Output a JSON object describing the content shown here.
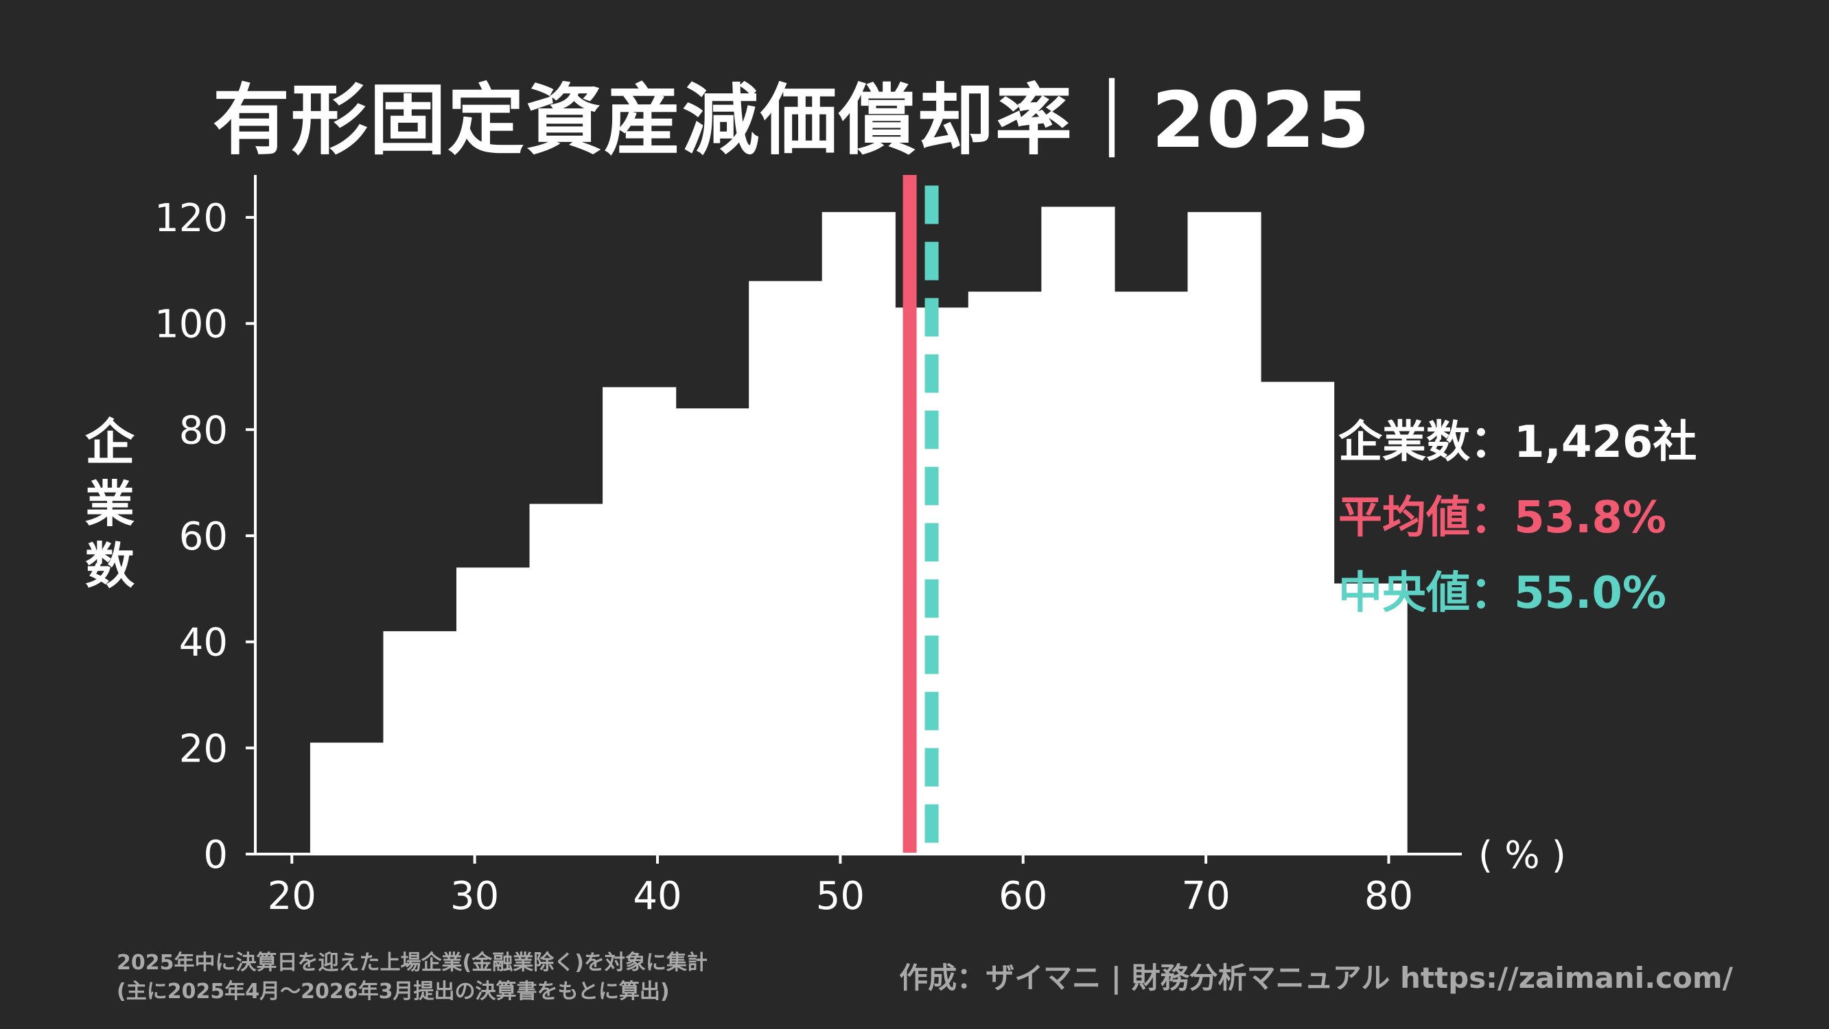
{
  "title": "有形固定資産減価償却率｜2025",
  "colors": {
    "background": "#282828",
    "bars": "#ffffff",
    "mean": "#f25a71",
    "median": "#5dd3c6",
    "note": "#a9a9a9"
  },
  "stats": {
    "count_label": "企業数",
    "count_value": "：1,426社",
    "mean_label": "平均値",
    "mean_value": "：53.8%",
    "median_label": "中央値",
    "median_value": "：55.0%"
  },
  "footnote": {
    "line1": "2025年中に決算日を迎えた上場企業(金融業除く)を対象に集計",
    "line2": "(主に2025年4月～2026年3月提出の決算書をもとに算出)"
  },
  "credit": "作成：ザイマニ | 財務分析マニュアル https://zaimani.com/",
  "chart_data": {
    "type": "bar",
    "title": "有形固定資産減価償却率｜2025",
    "ylabel": "企業数",
    "xunit": "( % )",
    "xlim": [
      18,
      84
    ],
    "ylim": [
      0,
      128
    ],
    "xticks": [
      20,
      30,
      40,
      50,
      60,
      70,
      80
    ],
    "yticks": [
      0,
      20,
      40,
      60,
      80,
      100,
      120
    ],
    "grid": false,
    "bin_width": 4,
    "bins": [
      {
        "start": 21,
        "end": 25,
        "count": 21
      },
      {
        "start": 25,
        "end": 29,
        "count": 42
      },
      {
        "start": 29,
        "end": 33,
        "count": 54
      },
      {
        "start": 33,
        "end": 37,
        "count": 66
      },
      {
        "start": 37,
        "end": 41,
        "count": 88
      },
      {
        "start": 41,
        "end": 45,
        "count": 84
      },
      {
        "start": 45,
        "end": 49,
        "count": 108
      },
      {
        "start": 49,
        "end": 53,
        "count": 121
      },
      {
        "start": 53,
        "end": 57,
        "count": 103
      },
      {
        "start": 57,
        "end": 61,
        "count": 106
      },
      {
        "start": 61,
        "end": 65,
        "count": 122
      },
      {
        "start": 65,
        "end": 69,
        "count": 106
      },
      {
        "start": 69,
        "end": 73,
        "count": 121
      },
      {
        "start": 73,
        "end": 77,
        "count": 89
      },
      {
        "start": 77,
        "end": 81,
        "count": 51
      }
    ],
    "mean": 53.8,
    "median": 55.0
  }
}
